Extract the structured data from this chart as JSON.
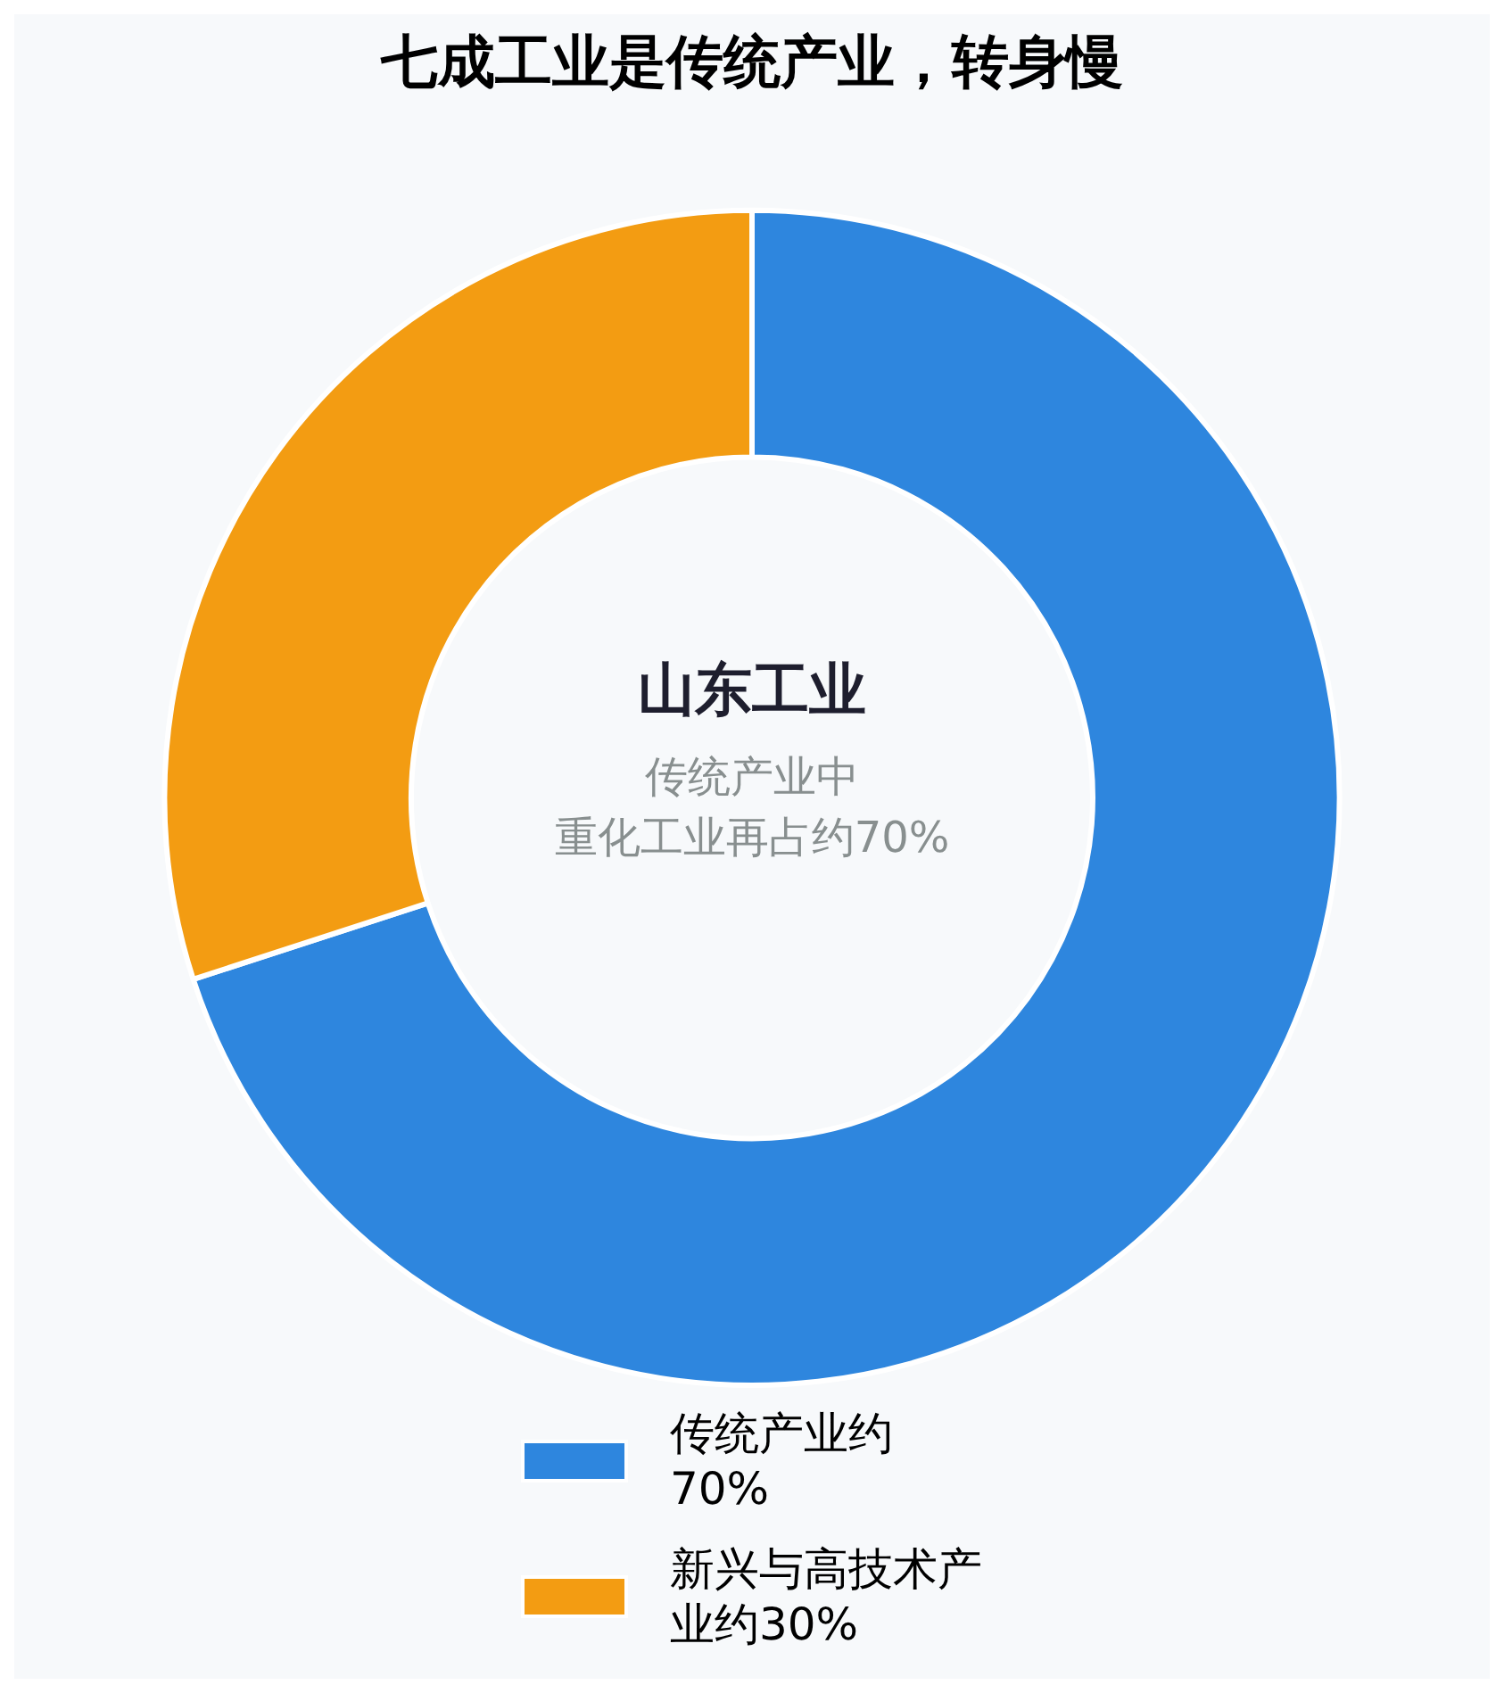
{
  "chart_data": {
    "type": "donut",
    "title": "七成工业是传统产业，转身慢",
    "categories": [
      "传统产业约70%",
      "新兴与高技术产业约30%"
    ],
    "values": [
      70,
      30
    ],
    "colors": [
      "#2e86de",
      "#f39c12"
    ],
    "annotations": [
      "山东工业",
      "传统产业中",
      "重化工业再占约70%"
    ],
    "legend": "bottom"
  }
}
